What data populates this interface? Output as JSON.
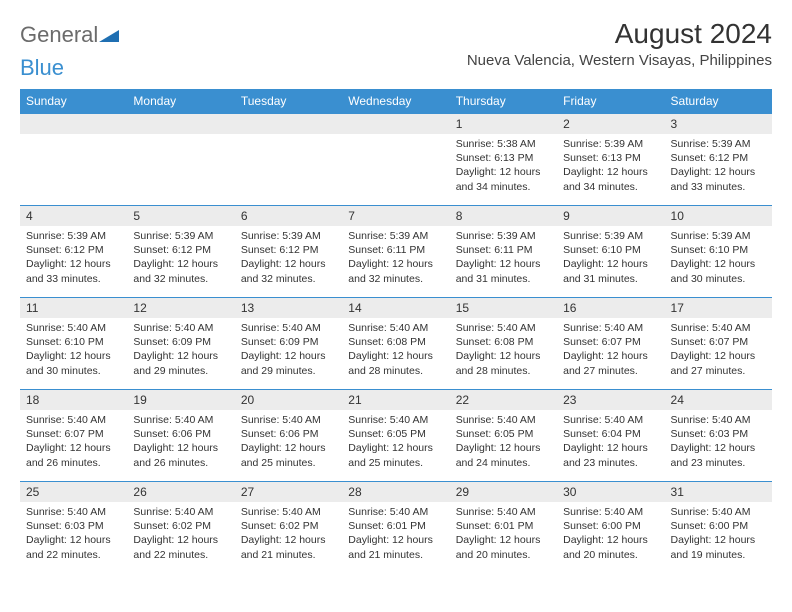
{
  "brand": {
    "word1": "General",
    "word2": "Blue",
    "triangle_color": "#1f6fb2"
  },
  "title": "August 2024",
  "location": "Nueva Valencia, Western Visayas, Philippines",
  "colors": {
    "header_bg": "#3a8fd0",
    "header_fg": "#ffffff",
    "daynum_bg": "#ececec",
    "rule": "#3a8fd0"
  },
  "day_names": [
    "Sunday",
    "Monday",
    "Tuesday",
    "Wednesday",
    "Thursday",
    "Friday",
    "Saturday"
  ],
  "weeks": [
    [
      null,
      null,
      null,
      null,
      {
        "n": "1",
        "sunrise": "5:38 AM",
        "sunset": "6:13 PM",
        "daylight": "12 hours and 34 minutes."
      },
      {
        "n": "2",
        "sunrise": "5:39 AM",
        "sunset": "6:13 PM",
        "daylight": "12 hours and 34 minutes."
      },
      {
        "n": "3",
        "sunrise": "5:39 AM",
        "sunset": "6:12 PM",
        "daylight": "12 hours and 33 minutes."
      }
    ],
    [
      {
        "n": "4",
        "sunrise": "5:39 AM",
        "sunset": "6:12 PM",
        "daylight": "12 hours and 33 minutes."
      },
      {
        "n": "5",
        "sunrise": "5:39 AM",
        "sunset": "6:12 PM",
        "daylight": "12 hours and 32 minutes."
      },
      {
        "n": "6",
        "sunrise": "5:39 AM",
        "sunset": "6:12 PM",
        "daylight": "12 hours and 32 minutes."
      },
      {
        "n": "7",
        "sunrise": "5:39 AM",
        "sunset": "6:11 PM",
        "daylight": "12 hours and 32 minutes."
      },
      {
        "n": "8",
        "sunrise": "5:39 AM",
        "sunset": "6:11 PM",
        "daylight": "12 hours and 31 minutes."
      },
      {
        "n": "9",
        "sunrise": "5:39 AM",
        "sunset": "6:10 PM",
        "daylight": "12 hours and 31 minutes."
      },
      {
        "n": "10",
        "sunrise": "5:39 AM",
        "sunset": "6:10 PM",
        "daylight": "12 hours and 30 minutes."
      }
    ],
    [
      {
        "n": "11",
        "sunrise": "5:40 AM",
        "sunset": "6:10 PM",
        "daylight": "12 hours and 30 minutes."
      },
      {
        "n": "12",
        "sunrise": "5:40 AM",
        "sunset": "6:09 PM",
        "daylight": "12 hours and 29 minutes."
      },
      {
        "n": "13",
        "sunrise": "5:40 AM",
        "sunset": "6:09 PM",
        "daylight": "12 hours and 29 minutes."
      },
      {
        "n": "14",
        "sunrise": "5:40 AM",
        "sunset": "6:08 PM",
        "daylight": "12 hours and 28 minutes."
      },
      {
        "n": "15",
        "sunrise": "5:40 AM",
        "sunset": "6:08 PM",
        "daylight": "12 hours and 28 minutes."
      },
      {
        "n": "16",
        "sunrise": "5:40 AM",
        "sunset": "6:07 PM",
        "daylight": "12 hours and 27 minutes."
      },
      {
        "n": "17",
        "sunrise": "5:40 AM",
        "sunset": "6:07 PM",
        "daylight": "12 hours and 27 minutes."
      }
    ],
    [
      {
        "n": "18",
        "sunrise": "5:40 AM",
        "sunset": "6:07 PM",
        "daylight": "12 hours and 26 minutes."
      },
      {
        "n": "19",
        "sunrise": "5:40 AM",
        "sunset": "6:06 PM",
        "daylight": "12 hours and 26 minutes."
      },
      {
        "n": "20",
        "sunrise": "5:40 AM",
        "sunset": "6:06 PM",
        "daylight": "12 hours and 25 minutes."
      },
      {
        "n": "21",
        "sunrise": "5:40 AM",
        "sunset": "6:05 PM",
        "daylight": "12 hours and 25 minutes."
      },
      {
        "n": "22",
        "sunrise": "5:40 AM",
        "sunset": "6:05 PM",
        "daylight": "12 hours and 24 minutes."
      },
      {
        "n": "23",
        "sunrise": "5:40 AM",
        "sunset": "6:04 PM",
        "daylight": "12 hours and 23 minutes."
      },
      {
        "n": "24",
        "sunrise": "5:40 AM",
        "sunset": "6:03 PM",
        "daylight": "12 hours and 23 minutes."
      }
    ],
    [
      {
        "n": "25",
        "sunrise": "5:40 AM",
        "sunset": "6:03 PM",
        "daylight": "12 hours and 22 minutes."
      },
      {
        "n": "26",
        "sunrise": "5:40 AM",
        "sunset": "6:02 PM",
        "daylight": "12 hours and 22 minutes."
      },
      {
        "n": "27",
        "sunrise": "5:40 AM",
        "sunset": "6:02 PM",
        "daylight": "12 hours and 21 minutes."
      },
      {
        "n": "28",
        "sunrise": "5:40 AM",
        "sunset": "6:01 PM",
        "daylight": "12 hours and 21 minutes."
      },
      {
        "n": "29",
        "sunrise": "5:40 AM",
        "sunset": "6:01 PM",
        "daylight": "12 hours and 20 minutes."
      },
      {
        "n": "30",
        "sunrise": "5:40 AM",
        "sunset": "6:00 PM",
        "daylight": "12 hours and 20 minutes."
      },
      {
        "n": "31",
        "sunrise": "5:40 AM",
        "sunset": "6:00 PM",
        "daylight": "12 hours and 19 minutes."
      }
    ]
  ],
  "labels": {
    "sunrise": "Sunrise: ",
    "sunset": "Sunset: ",
    "daylight": "Daylight: "
  }
}
